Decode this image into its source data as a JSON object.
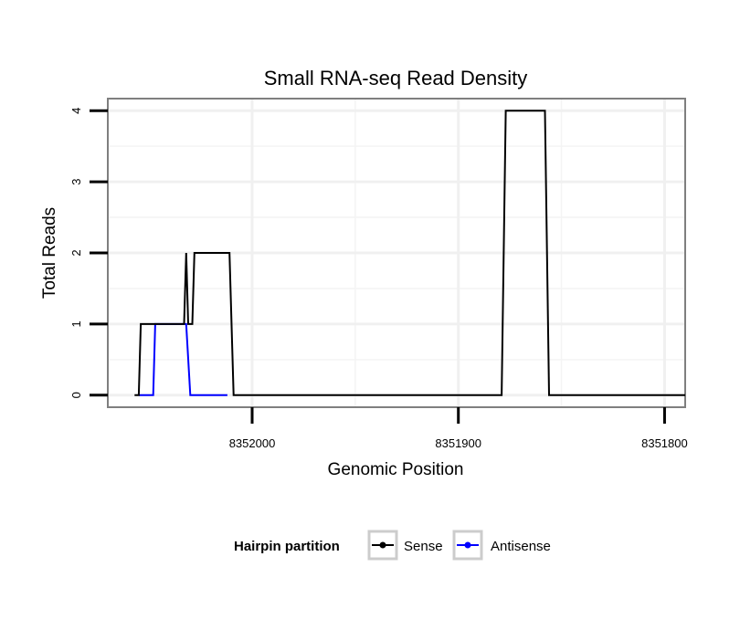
{
  "chart_data": {
    "type": "line",
    "title": "Small RNA-seq Read Density",
    "xlabel": "Genomic Position",
    "ylabel": "Total Reads",
    "xlim": [
      8352070,
      8351790
    ],
    "ylim": [
      -0.17,
      4.17
    ],
    "x_reversed": true,
    "grid": true,
    "x_ticks": [
      8352000,
      8351900,
      8351800
    ],
    "x_tick_labels": [
      "8352000",
      "8351900",
      "8351800"
    ],
    "y_ticks": [
      0,
      1,
      2,
      3,
      4
    ],
    "y_tick_labels": [
      "0",
      "1",
      "2",
      "3",
      "4"
    ],
    "legend": {
      "title": "Hairpin partition",
      "placement": "bottom",
      "entries": [
        {
          "label": "Sense",
          "color": "#000000"
        },
        {
          "label": "Antisense",
          "color": "#0000ff"
        }
      ]
    },
    "series": [
      {
        "name": "Sense",
        "color": "#000000",
        "x": [
          8352057,
          8352055,
          8352054,
          8352035,
          8352033,
          8352032,
          8352031,
          8352029,
          8352028,
          8352011,
          8352009,
          8351879,
          8351877,
          8351858,
          8351856,
          8351790
        ],
        "y": [
          0,
          0,
          1,
          1,
          1,
          2,
          1,
          1,
          2,
          2,
          0,
          0,
          4,
          4,
          0,
          0
        ]
      },
      {
        "name": "Antisense",
        "color": "#0000ff",
        "x": [
          8352055,
          8352048,
          8352047,
          8352032,
          8352030,
          8352012
        ],
        "y": [
          0,
          0,
          1,
          1,
          0,
          0
        ]
      }
    ]
  }
}
